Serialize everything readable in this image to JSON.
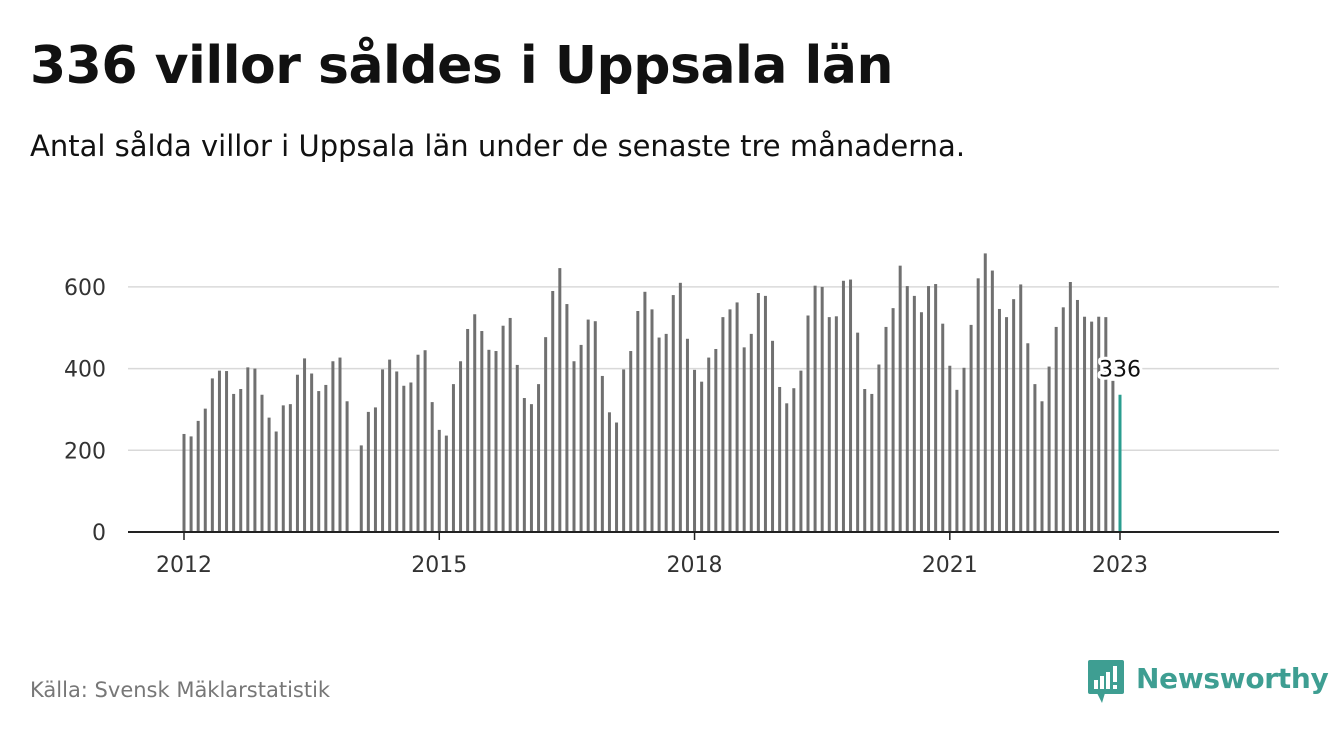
{
  "title": "336 villor såldes i Uppsala län",
  "subtitle": "Antal sålda villor i Uppsala län under de senaste tre månaderna.",
  "source": "Källa: Svensk Mäklarstatistik",
  "brand": {
    "name": "Newsworthy",
    "logo_icon": "bar-chart-speech-bubble-icon",
    "color": "#3e9e92"
  },
  "chart_data": {
    "type": "bar",
    "title": "336 villor såldes i Uppsala län",
    "subtitle": "Antal sålda villor i Uppsala län under de senaste tre månaderna.",
    "xlabel": "",
    "ylabel": "",
    "ylim": [
      0,
      700
    ],
    "yticks": [
      0,
      200,
      400,
      600
    ],
    "ytick_labels": [
      "0",
      "200",
      "400",
      "600"
    ],
    "xticks": [
      2012,
      2015,
      2018,
      2021,
      2023
    ],
    "xtick_labels": [
      "2012",
      "2015",
      "2018",
      "2021",
      "2023"
    ],
    "grid": true,
    "legend": "none",
    "bar_color": "#707070",
    "highlight_color": "#2a9d8f",
    "start": "2012-01",
    "end": "2023-01",
    "highlight_label": "336",
    "series": [
      {
        "values": [
          240,
          234,
          272,
          302,
          376,
          395,
          394,
          338,
          350,
          403,
          400,
          336,
          280,
          246,
          310,
          313,
          385,
          425,
          388,
          345,
          360,
          418,
          427,
          320,
          null,
          212,
          294,
          305,
          398,
          422,
          393,
          358,
          366,
          434,
          445,
          318,
          250,
          236,
          362,
          418,
          497,
          533,
          492,
          446,
          443,
          505,
          524,
          409,
          328,
          313,
          362,
          477,
          590,
          646,
          558,
          418,
          458,
          520,
          516,
          382,
          293,
          268,
          398,
          443,
          541,
          588,
          545,
          476,
          485,
          580,
          610,
          473,
          397,
          368,
          427,
          448,
          526,
          545,
          562,
          452,
          485,
          585,
          578,
          468,
          355,
          315,
          352,
          395,
          530,
          603,
          600,
          526,
          528,
          615,
          618,
          488,
          350,
          338,
          410,
          502,
          548,
          652,
          602,
          578,
          538,
          602,
          607,
          510,
          407,
          348,
          402,
          507,
          621,
          682,
          640,
          546,
          526,
          570,
          606,
          462,
          362,
          320,
          405,
          502,
          550,
          612,
          568,
          527,
          515,
          527,
          526,
          370,
          336
        ]
      }
    ]
  }
}
